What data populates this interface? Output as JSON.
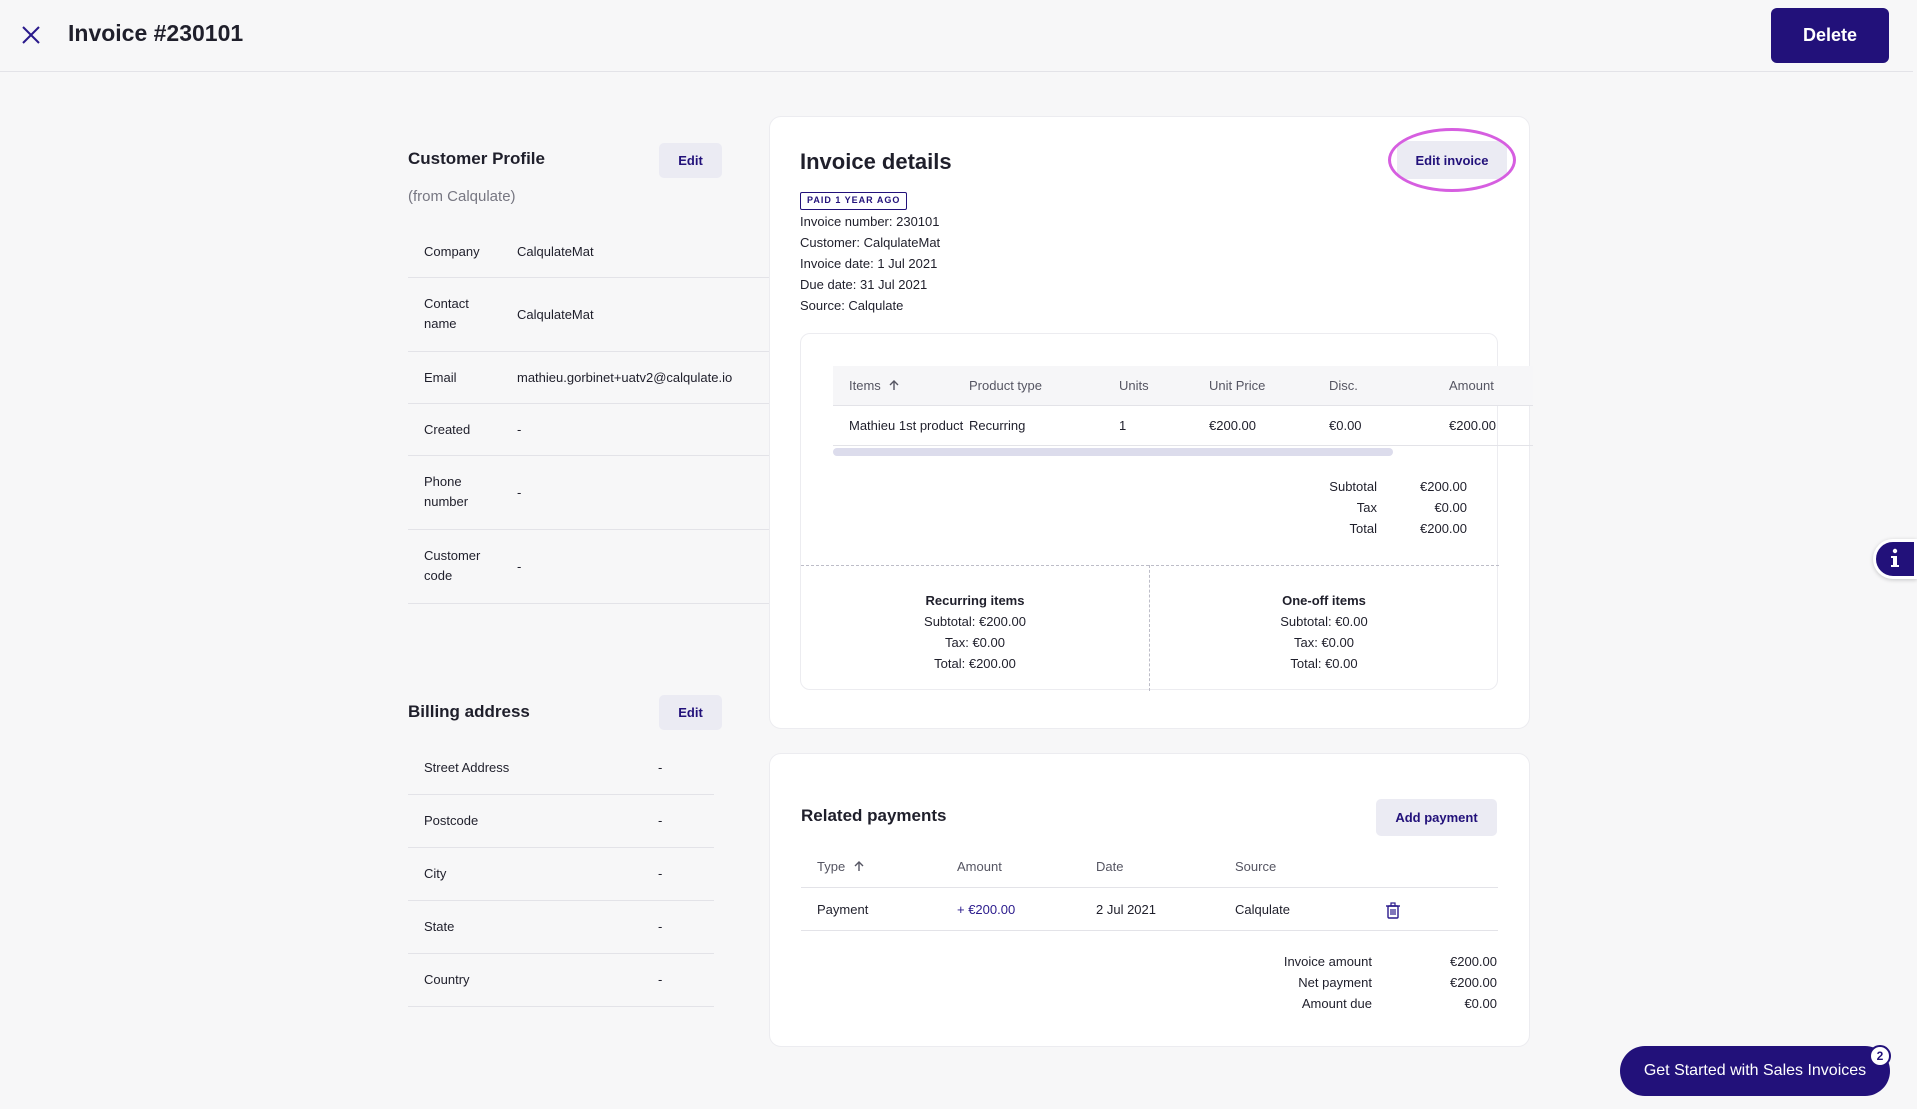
{
  "header": {
    "title": "Invoice #230101",
    "delete_label": "Delete"
  },
  "customer_profile": {
    "title": "Customer Profile",
    "subtitle": "(from Calqulate)",
    "edit_label": "Edit",
    "rows": [
      {
        "label": "Company",
        "value": "CalqulateMat"
      },
      {
        "label": "Contact name",
        "value": "CalqulateMat"
      },
      {
        "label": "Email",
        "value": "mathieu.gorbinet+uatv2@calqulate.io"
      },
      {
        "label": "Created",
        "value": "-"
      },
      {
        "label": "Phone number",
        "value": "-"
      },
      {
        "label": "Customer code",
        "value": "-"
      }
    ]
  },
  "billing_address": {
    "title": "Billing address",
    "edit_label": "Edit",
    "rows": [
      {
        "label": "Street Address",
        "value": "-"
      },
      {
        "label": "Postcode",
        "value": "-"
      },
      {
        "label": "City",
        "value": "-"
      },
      {
        "label": "State",
        "value": "-"
      },
      {
        "label": "Country",
        "value": "-"
      }
    ]
  },
  "invoice_details": {
    "title": "Invoice details",
    "edit_label": "Edit invoice",
    "badge": "PAID 1 YEAR AGO",
    "lines": [
      "Invoice number: 230101",
      "Customer: CalqulateMat",
      "Invoice date: 1 Jul 2021",
      "Due date: 31 Jul 2021",
      "Source: Calqulate"
    ],
    "items_table": {
      "headers": [
        "Items",
        "Product type",
        "Units",
        "Unit Price",
        "Disc.",
        "Amount"
      ],
      "rows": [
        [
          "Mathieu 1st product",
          "Recurring",
          "1",
          "€200.00",
          "€0.00",
          "€200.00"
        ]
      ]
    },
    "totals": [
      {
        "label": "Subtotal",
        "value": "€200.00"
      },
      {
        "label": "Tax",
        "value": "€0.00"
      },
      {
        "label": "Total",
        "value": "€200.00"
      }
    ],
    "recurring": {
      "title": "Recurring items",
      "subtotal": "Subtotal: €200.00",
      "tax": "Tax: €0.00",
      "total": "Total: €200.00"
    },
    "oneoff": {
      "title": "One-off items",
      "subtotal": "Subtotal: €0.00",
      "tax": "Tax: €0.00",
      "total": "Total: €0.00"
    }
  },
  "related_payments": {
    "title": "Related payments",
    "add_label": "Add payment",
    "headers": [
      "Type",
      "Amount",
      "Date",
      "Source"
    ],
    "rows": [
      [
        "Payment",
        "+ €200.00",
        "2 Jul 2021",
        "Calqulate"
      ]
    ],
    "summary": [
      {
        "label": "Invoice amount",
        "value": "€200.00"
      },
      {
        "label": "Net payment",
        "value": "€200.00"
      },
      {
        "label": "Amount due",
        "value": "€0.00"
      }
    ]
  },
  "get_started": {
    "label": "Get Started with Sales Invoices",
    "badge": "2"
  },
  "colors": {
    "brand": "#22117a",
    "highlight": "#d65ee0"
  }
}
